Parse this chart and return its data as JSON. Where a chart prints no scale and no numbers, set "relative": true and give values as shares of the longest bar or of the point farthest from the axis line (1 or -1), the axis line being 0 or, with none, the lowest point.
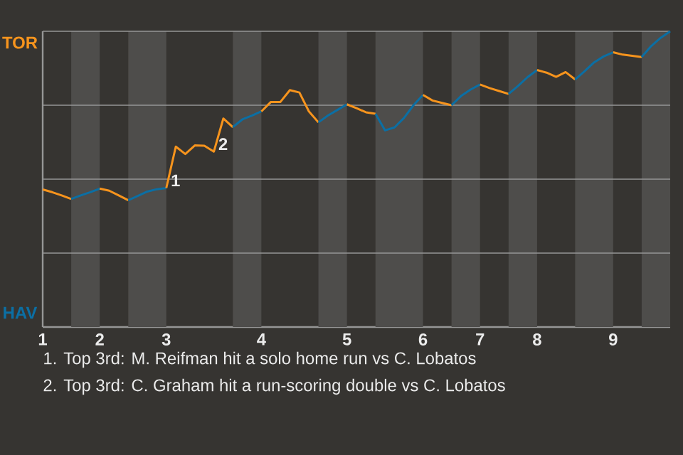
{
  "chart_data": {
    "type": "line",
    "relative": true,
    "categories": [
      "1",
      null,
      null,
      null,
      null,
      null,
      "2",
      null,
      null,
      null,
      null,
      null,
      null,
      "3",
      null,
      null,
      null,
      null,
      null,
      null,
      null,
      null,
      null,
      "4",
      null,
      null,
      null,
      null,
      null,
      null,
      null,
      null,
      "5",
      null,
      null,
      null,
      null,
      null,
      null,
      null,
      "6",
      null,
      null,
      null,
      null,
      null,
      "7",
      null,
      null,
      null,
      null,
      null,
      "8",
      null,
      null,
      null,
      null,
      null,
      null,
      null,
      "9",
      null,
      null,
      null,
      null,
      null,
      null
    ],
    "grid": "y",
    "series": [
      {
        "color": "#f7941d",
        "values": [
          0.465,
          0.456,
          0.445,
          0.433,
          null,
          null,
          null,
          null,
          null,
          null,
          null,
          null,
          null,
          null,
          null,
          null,
          null,
          null,
          null,
          null,
          null,
          null,
          null,
          null,
          null,
          null,
          null,
          null,
          null,
          null,
          null,
          null,
          null,
          null,
          null,
          null,
          null,
          null,
          null,
          null,
          null,
          null,
          null,
          null,
          null,
          null,
          null,
          null,
          null,
          null,
          null,
          null,
          null,
          null,
          null,
          null,
          null,
          null,
          null,
          null,
          null,
          null,
          null,
          null,
          null,
          null,
          null
        ]
      },
      {
        "color": "#0b6fa4",
        "values": [
          null,
          null,
          null,
          0.433,
          0.445,
          0.456,
          0.468,
          null,
          null,
          null,
          null,
          null,
          null,
          null,
          null,
          null,
          null,
          null,
          null,
          null,
          null,
          null,
          null,
          null,
          null,
          null,
          null,
          null,
          null,
          null,
          null,
          null,
          null,
          null,
          null,
          null,
          null,
          null,
          null,
          null,
          null,
          null,
          null,
          null,
          null,
          null,
          null,
          null,
          null,
          null,
          null,
          null,
          null,
          null,
          null,
          null,
          null,
          null,
          null,
          null,
          null,
          null,
          null,
          null,
          null,
          null,
          null
        ]
      },
      {
        "color": "#f7941d",
        "values": [
          null,
          null,
          null,
          null,
          null,
          null,
          0.468,
          0.461,
          0.445,
          0.429,
          null,
          null,
          null,
          null,
          null,
          null,
          null,
          null,
          null,
          null,
          null,
          null,
          null,
          null,
          null,
          null,
          null,
          null,
          null,
          null,
          null,
          null,
          null,
          null,
          null,
          null,
          null,
          null,
          null,
          null,
          null,
          null,
          null,
          null,
          null,
          null,
          null,
          null,
          null,
          null,
          null,
          null,
          null,
          null,
          null,
          null,
          null,
          null,
          null,
          null,
          null,
          null,
          null,
          null,
          null,
          null,
          null
        ]
      },
      {
        "color": "#0b6fa4",
        "values": [
          null,
          null,
          null,
          null,
          null,
          null,
          null,
          null,
          null,
          0.429,
          0.443,
          0.458,
          0.466,
          0.47,
          null,
          null,
          null,
          null,
          null,
          null,
          null,
          null,
          null,
          null,
          null,
          null,
          null,
          null,
          null,
          null,
          null,
          null,
          null,
          null,
          null,
          null,
          null,
          null,
          null,
          null,
          null,
          null,
          null,
          null,
          null,
          null,
          null,
          null,
          null,
          null,
          null,
          null,
          null,
          null,
          null,
          null,
          null,
          null,
          null,
          null,
          null,
          null,
          null,
          null,
          null,
          null,
          null
        ]
      },
      {
        "color": "#f7941d",
        "values": [
          null,
          null,
          null,
          null,
          null,
          null,
          null,
          null,
          null,
          null,
          null,
          null,
          null,
          0.47,
          0.61,
          0.585,
          0.614,
          0.613,
          0.593,
          0.705,
          0.676,
          null,
          null,
          null,
          null,
          null,
          null,
          null,
          null,
          null,
          null,
          null,
          null,
          null,
          null,
          null,
          null,
          null,
          null,
          null,
          null,
          null,
          null,
          null,
          null,
          null,
          null,
          null,
          null,
          null,
          null,
          null,
          null,
          null,
          null,
          null,
          null,
          null,
          null,
          null,
          null,
          null,
          null,
          null,
          null,
          null,
          null
        ]
      },
      {
        "color": "#0b6fa4",
        "values": [
          null,
          null,
          null,
          null,
          null,
          null,
          null,
          null,
          null,
          null,
          null,
          null,
          null,
          null,
          null,
          null,
          null,
          null,
          null,
          null,
          0.676,
          0.702,
          0.715,
          0.729,
          null,
          null,
          null,
          null,
          null,
          null,
          null,
          null,
          null,
          null,
          null,
          null,
          null,
          null,
          null,
          null,
          null,
          null,
          null,
          null,
          null,
          null,
          null,
          null,
          null,
          null,
          null,
          null,
          null,
          null,
          null,
          null,
          null,
          null,
          null,
          null,
          null,
          null,
          null,
          null,
          null,
          null,
          null
        ]
      },
      {
        "color": "#f7941d",
        "values": [
          null,
          null,
          null,
          null,
          null,
          null,
          null,
          null,
          null,
          null,
          null,
          null,
          null,
          null,
          null,
          null,
          null,
          null,
          null,
          null,
          null,
          null,
          null,
          0.729,
          0.761,
          0.761,
          0.801,
          0.793,
          0.729,
          0.692,
          null,
          null,
          null,
          null,
          null,
          null,
          null,
          null,
          null,
          null,
          null,
          null,
          null,
          null,
          null,
          null,
          null,
          null,
          null,
          null,
          null,
          null,
          null,
          null,
          null,
          null,
          null,
          null,
          null,
          null,
          null,
          null,
          null,
          null,
          null,
          null,
          null
        ]
      },
      {
        "color": "#0b6fa4",
        "values": [
          null,
          null,
          null,
          null,
          null,
          null,
          null,
          null,
          null,
          null,
          null,
          null,
          null,
          null,
          null,
          null,
          null,
          null,
          null,
          null,
          null,
          null,
          null,
          null,
          null,
          null,
          null,
          null,
          null,
          0.692,
          0.715,
          0.734,
          0.753,
          null,
          null,
          null,
          null,
          null,
          null,
          null,
          null,
          null,
          null,
          null,
          null,
          null,
          null,
          null,
          null,
          null,
          null,
          null,
          null,
          null,
          null,
          null,
          null,
          null,
          null,
          null,
          null,
          null,
          null,
          null,
          null,
          null,
          null
        ]
      },
      {
        "color": "#f7941d",
        "values": [
          null,
          null,
          null,
          null,
          null,
          null,
          null,
          null,
          null,
          null,
          null,
          null,
          null,
          null,
          null,
          null,
          null,
          null,
          null,
          null,
          null,
          null,
          null,
          null,
          null,
          null,
          null,
          null,
          null,
          null,
          null,
          null,
          0.753,
          0.74,
          0.726,
          0.721,
          null,
          null,
          null,
          null,
          null,
          null,
          null,
          null,
          null,
          null,
          null,
          null,
          null,
          null,
          null,
          null,
          null,
          null,
          null,
          null,
          null,
          null,
          null,
          null,
          null,
          null,
          null,
          null,
          null,
          null,
          null
        ]
      },
      {
        "color": "#0b6fa4",
        "values": [
          null,
          null,
          null,
          null,
          null,
          null,
          null,
          null,
          null,
          null,
          null,
          null,
          null,
          null,
          null,
          null,
          null,
          null,
          null,
          null,
          null,
          null,
          null,
          null,
          null,
          null,
          null,
          null,
          null,
          null,
          null,
          null,
          null,
          null,
          null,
          0.721,
          0.665,
          0.675,
          0.707,
          0.75,
          0.785,
          null,
          null,
          null,
          null,
          null,
          null,
          null,
          null,
          null,
          null,
          null,
          null,
          null,
          null,
          null,
          null,
          null,
          null,
          null,
          null,
          null,
          null,
          null,
          null,
          null,
          null
        ]
      },
      {
        "color": "#f7941d",
        "values": [
          null,
          null,
          null,
          null,
          null,
          null,
          null,
          null,
          null,
          null,
          null,
          null,
          null,
          null,
          null,
          null,
          null,
          null,
          null,
          null,
          null,
          null,
          null,
          null,
          null,
          null,
          null,
          null,
          null,
          null,
          null,
          null,
          null,
          null,
          null,
          null,
          null,
          null,
          null,
          null,
          0.785,
          0.766,
          0.758,
          0.75,
          null,
          null,
          null,
          null,
          null,
          null,
          null,
          null,
          null,
          null,
          null,
          null,
          null,
          null,
          null,
          null,
          null,
          null,
          null,
          null,
          null,
          null,
          null
        ]
      },
      {
        "color": "#0b6fa4",
        "values": [
          null,
          null,
          null,
          null,
          null,
          null,
          null,
          null,
          null,
          null,
          null,
          null,
          null,
          null,
          null,
          null,
          null,
          null,
          null,
          null,
          null,
          null,
          null,
          null,
          null,
          null,
          null,
          null,
          null,
          null,
          null,
          null,
          null,
          null,
          null,
          null,
          null,
          null,
          null,
          null,
          null,
          null,
          null,
          0.75,
          0.781,
          0.803,
          0.82,
          null,
          null,
          null,
          null,
          null,
          null,
          null,
          null,
          null,
          null,
          null,
          null,
          null,
          null,
          null,
          null,
          null,
          null,
          null,
          null
        ]
      },
      {
        "color": "#f7941d",
        "values": [
          null,
          null,
          null,
          null,
          null,
          null,
          null,
          null,
          null,
          null,
          null,
          null,
          null,
          null,
          null,
          null,
          null,
          null,
          null,
          null,
          null,
          null,
          null,
          null,
          null,
          null,
          null,
          null,
          null,
          null,
          null,
          null,
          null,
          null,
          null,
          null,
          null,
          null,
          null,
          null,
          null,
          null,
          null,
          null,
          null,
          null,
          0.82,
          0.808,
          0.798,
          0.788,
          null,
          null,
          null,
          null,
          null,
          null,
          null,
          null,
          null,
          null,
          null,
          null,
          null,
          null,
          null,
          null,
          null
        ]
      },
      {
        "color": "#0b6fa4",
        "values": [
          null,
          null,
          null,
          null,
          null,
          null,
          null,
          null,
          null,
          null,
          null,
          null,
          null,
          null,
          null,
          null,
          null,
          null,
          null,
          null,
          null,
          null,
          null,
          null,
          null,
          null,
          null,
          null,
          null,
          null,
          null,
          null,
          null,
          null,
          null,
          null,
          null,
          null,
          null,
          null,
          null,
          null,
          null,
          null,
          null,
          null,
          null,
          null,
          null,
          0.788,
          0.815,
          0.845,
          0.869,
          null,
          null,
          null,
          null,
          null,
          null,
          null,
          null,
          null,
          null,
          null,
          null,
          null,
          null
        ]
      },
      {
        "color": "#f7941d",
        "values": [
          null,
          null,
          null,
          null,
          null,
          null,
          null,
          null,
          null,
          null,
          null,
          null,
          null,
          null,
          null,
          null,
          null,
          null,
          null,
          null,
          null,
          null,
          null,
          null,
          null,
          null,
          null,
          null,
          null,
          null,
          null,
          null,
          null,
          null,
          null,
          null,
          null,
          null,
          null,
          null,
          null,
          null,
          null,
          null,
          null,
          null,
          null,
          null,
          null,
          null,
          null,
          null,
          0.869,
          0.86,
          0.846,
          0.862,
          0.837,
          null,
          null,
          null,
          null,
          null,
          null,
          null,
          null,
          null,
          null
        ]
      },
      {
        "color": "#0b6fa4",
        "values": [
          null,
          null,
          null,
          null,
          null,
          null,
          null,
          null,
          null,
          null,
          null,
          null,
          null,
          null,
          null,
          null,
          null,
          null,
          null,
          null,
          null,
          null,
          null,
          null,
          null,
          null,
          null,
          null,
          null,
          null,
          null,
          null,
          null,
          null,
          null,
          null,
          null,
          null,
          null,
          null,
          null,
          null,
          null,
          null,
          null,
          null,
          null,
          null,
          null,
          null,
          null,
          null,
          null,
          null,
          null,
          null,
          0.837,
          0.865,
          0.895,
          0.915,
          0.929,
          null,
          null,
          null,
          null,
          null,
          null
        ]
      },
      {
        "color": "#f7941d",
        "values": [
          null,
          null,
          null,
          null,
          null,
          null,
          null,
          null,
          null,
          null,
          null,
          null,
          null,
          null,
          null,
          null,
          null,
          null,
          null,
          null,
          null,
          null,
          null,
          null,
          null,
          null,
          null,
          null,
          null,
          null,
          null,
          null,
          null,
          null,
          null,
          null,
          null,
          null,
          null,
          null,
          null,
          null,
          null,
          null,
          null,
          null,
          null,
          null,
          null,
          null,
          null,
          null,
          null,
          null,
          null,
          null,
          null,
          null,
          null,
          null,
          0.929,
          0.921,
          0.917,
          0.913,
          null,
          null,
          null
        ]
      },
      {
        "color": "#0b6fa4",
        "values": [
          null,
          null,
          null,
          null,
          null,
          null,
          null,
          null,
          null,
          null,
          null,
          null,
          null,
          null,
          null,
          null,
          null,
          null,
          null,
          null,
          null,
          null,
          null,
          null,
          null,
          null,
          null,
          null,
          null,
          null,
          null,
          null,
          null,
          null,
          null,
          null,
          null,
          null,
          null,
          null,
          null,
          null,
          null,
          null,
          null,
          null,
          null,
          null,
          null,
          null,
          null,
          null,
          null,
          null,
          null,
          null,
          null,
          null,
          null,
          null,
          null,
          null,
          null,
          0.913,
          0.95,
          0.978,
          1
        ]
      }
    ],
    "annotations": [
      "TOR",
      "HAV",
      {
        "text": "1"
      },
      {
        "text": "2"
      },
      "1. Top 3rd: M. Reifman hit a solo home run vs C. Lobatos",
      "2. Top 3rd: C. Graham hit a run-scoring double vs C. Lobatos"
    ],
    "line_style": "solid",
    "marker": "none"
  }
}
